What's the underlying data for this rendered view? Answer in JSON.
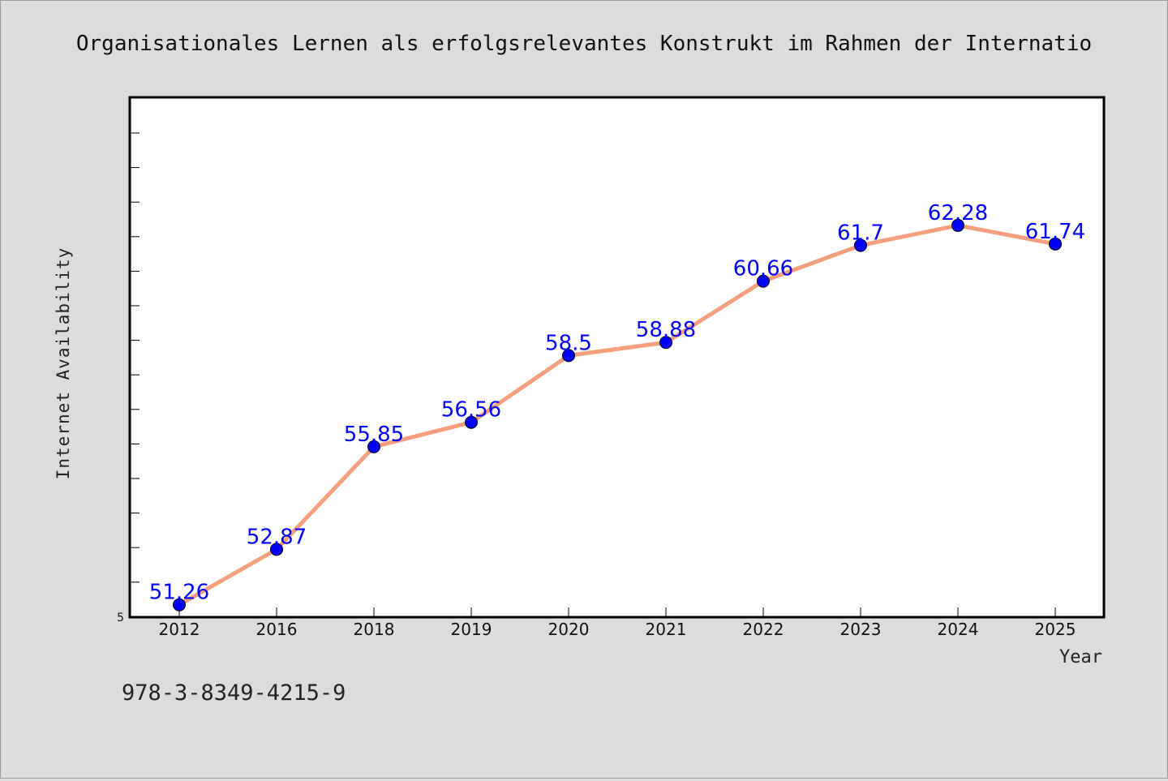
{
  "chart_data": {
    "type": "line",
    "title": "Organisationales Lernen als erfolgsrelevantes Konstrukt im Rahmen der Internatio",
    "xlabel": "Year",
    "ylabel": "Internet Availability",
    "categories": [
      "2012",
      "2016",
      "2018",
      "2019",
      "2020",
      "2021",
      "2022",
      "2023",
      "2024",
      "2025"
    ],
    "series": [
      {
        "values": [
          51.26,
          52.87,
          55.85,
          56.56,
          58.5,
          58.88,
          60.66,
          61.7,
          62.28,
          61.74
        ],
        "data_labels": [
          "51.26",
          "52.87",
          "55.85",
          "56.56",
          "58.5",
          "58.88",
          "60.66",
          "61.7",
          "62.28",
          "61.74"
        ]
      }
    ],
    "ylim": [
      50.9,
      66
    ],
    "ymin_label": "5",
    "grid": false,
    "legend": "none",
    "colors": {
      "line": "#f4a07e",
      "marker": "#0000ff",
      "label": "#0000ff",
      "background": "#dcdcdc",
      "plot_background": "#ffffff"
    }
  },
  "footnote": "978-3-8349-4215-9"
}
